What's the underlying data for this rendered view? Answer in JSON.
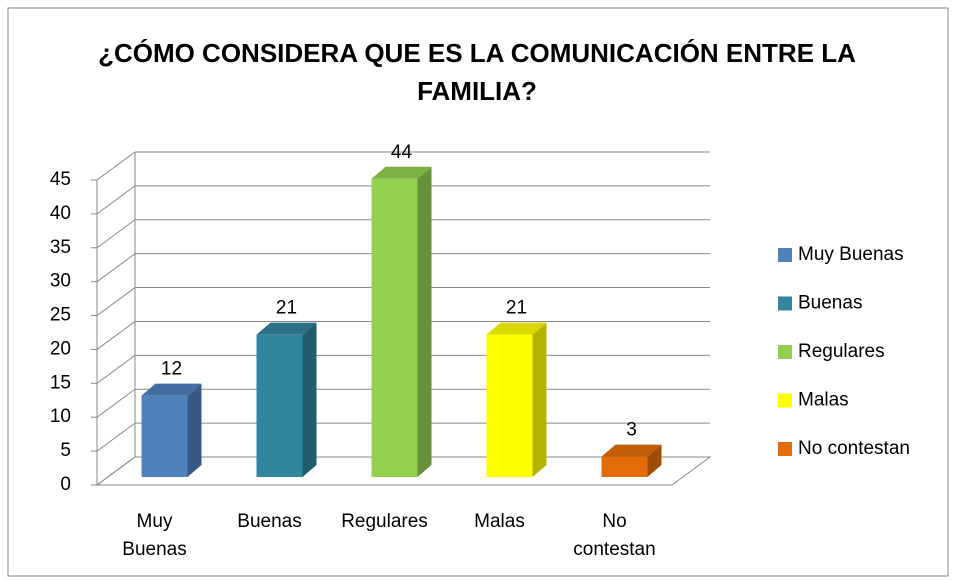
{
  "chart_data": {
    "type": "bar3d",
    "title": "¿CÓMO CONSIDERA QUE ES LA COMUNICACIÓN ENTRE LA FAMILIA?",
    "categories": [
      "Muy Buenas",
      "Buenas",
      "Regulares",
      "Malas",
      "No contestan"
    ],
    "values": [
      12,
      21,
      44,
      21,
      3
    ],
    "colors": [
      "#4f81bd",
      "#31859c",
      "#92d050",
      "#ffff00",
      "#e36c09"
    ],
    "ylim": [
      0,
      45
    ],
    "yticks": [
      0,
      5,
      10,
      15,
      20,
      25,
      30,
      35,
      40,
      45
    ],
    "grid": true,
    "legend": "right"
  }
}
